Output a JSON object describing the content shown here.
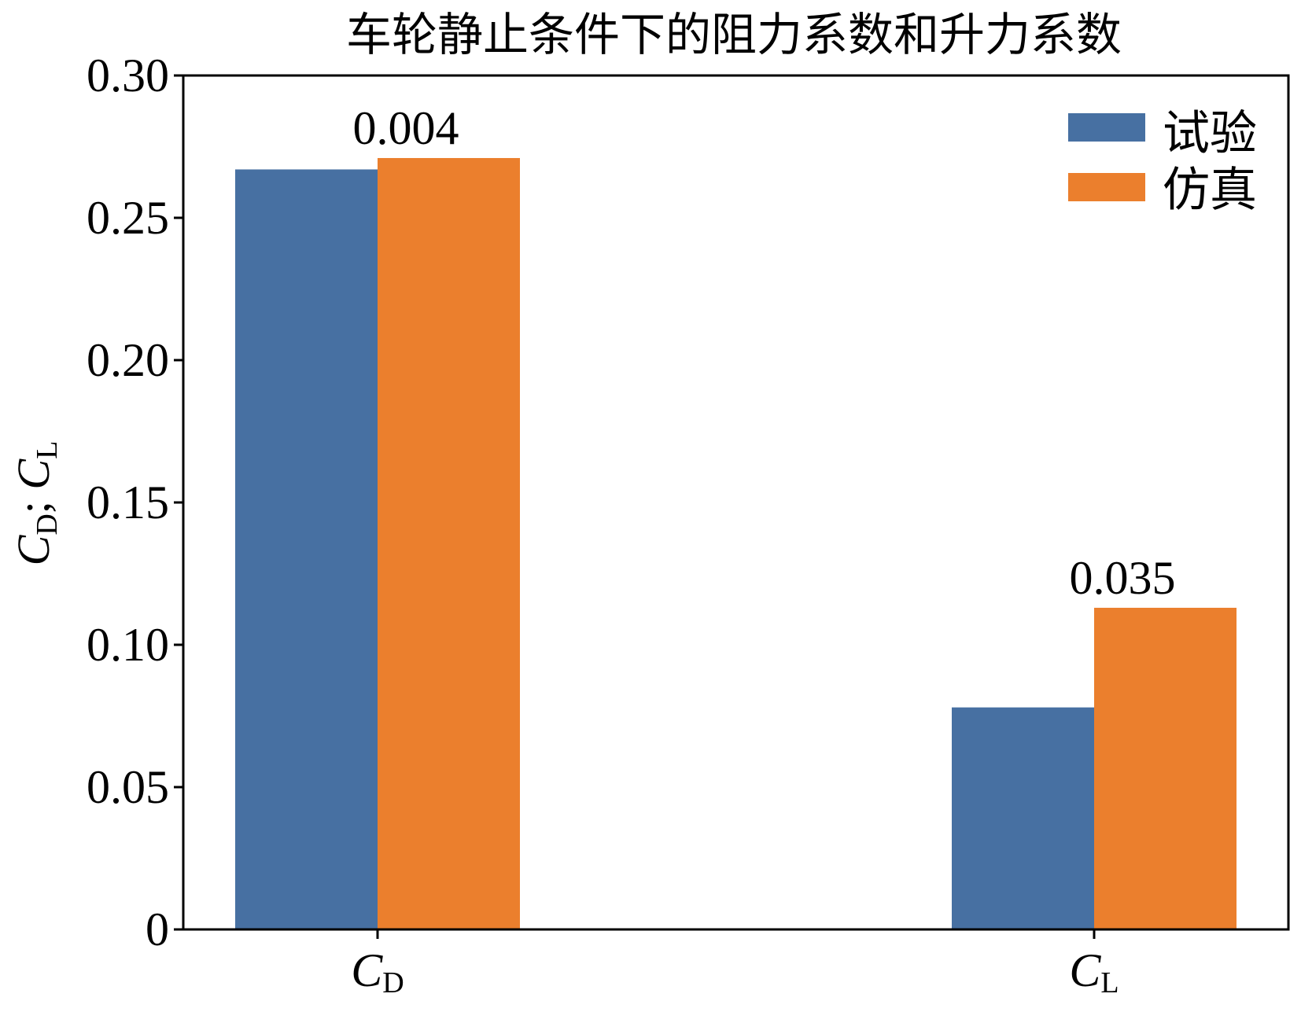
{
  "chart_data": {
    "type": "bar",
    "title": "车轮静止条件下的阻力系数和升力系数",
    "xlabel": "",
    "ylabel": {
      "main1": "C",
      "sub1": "D",
      "sep": "; ",
      "main2": "C",
      "sub2": "L"
    },
    "categories": [
      {
        "main": "C",
        "sub": "D"
      },
      {
        "main": "C",
        "sub": "L"
      }
    ],
    "series": [
      {
        "name": "试验",
        "color": "#4770A2",
        "values": [
          0.267,
          0.078
        ]
      },
      {
        "name": "仿真",
        "color": "#EB7F2D",
        "values": [
          0.271,
          0.113
        ]
      }
    ],
    "annotations": [
      "0.004",
      "0.035"
    ],
    "ylim": [
      0,
      0.3
    ],
    "yticks": [
      0,
      0.05,
      0.1,
      0.15,
      0.2,
      0.25,
      0.3
    ],
    "ytick_labels": [
      "0",
      "0.05",
      "0.10",
      "0.15",
      "0.20",
      "0.25",
      "0.30"
    ],
    "grid": false,
    "legend_position": "top-right"
  }
}
